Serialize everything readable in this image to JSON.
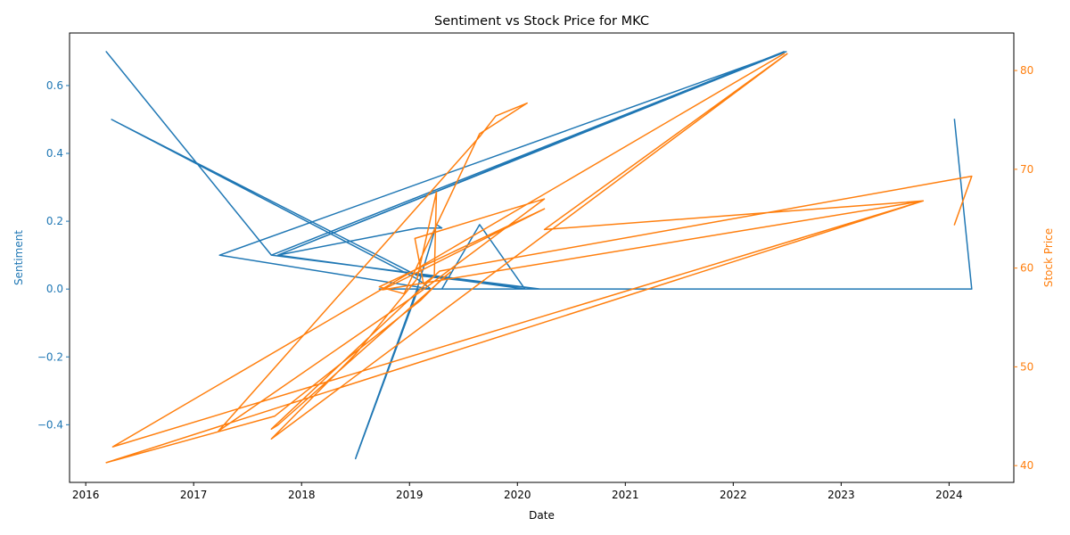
{
  "chart_data": {
    "type": "line",
    "title": "Sentiment vs Stock Price for MKC",
    "xlabel": "Date",
    "ylabel_left": "Sentiment",
    "ylabel_right": "Stock Price",
    "xlim": [
      2015.85,
      2024.6
    ],
    "ylim_left": [
      -0.57,
      0.755
    ],
    "ylim_right": [
      38.3,
      83.8
    ],
    "x_ticks": [
      2016,
      2017,
      2018,
      2019,
      2020,
      2021,
      2022,
      2023,
      2024
    ],
    "x_tick_labels": [
      "2016",
      "2017",
      "2018",
      "2019",
      "2020",
      "2021",
      "2022",
      "2023",
      "2024"
    ],
    "y_left_ticks": [
      -0.4,
      -0.2,
      0.0,
      0.2,
      0.4,
      0.6
    ],
    "y_left_tick_labels": [
      "−0.4",
      "−0.2",
      "0.0",
      "0.2",
      "0.4",
      "0.6"
    ],
    "y_right_ticks": [
      40,
      50,
      60,
      70,
      80
    ],
    "y_right_tick_labels": [
      "40",
      "50",
      "60",
      "70",
      "80"
    ],
    "grid": false,
    "colors": {
      "sentiment": "#1f77b4",
      "price": "#ff7f0e",
      "axis": "#000000"
    },
    "series": [
      {
        "axis": "left",
        "color": "#1f77b4",
        "points": [
          [
            2024.05,
            0.5
          ],
          [
            2024.21,
            0.0
          ],
          [
            2023.76,
            0.0
          ],
          [
            2020.25,
            0.0
          ],
          [
            2020.07,
            0.0
          ],
          [
            2019.65,
            0.19
          ],
          [
            2019.3,
            0.0
          ],
          [
            2019.08,
            0.0
          ],
          [
            2018.5,
            -0.5
          ],
          [
            2018.51,
            -0.49
          ],
          [
            2019.07,
            0.0
          ],
          [
            2019.25,
            0.19
          ],
          [
            2019.3,
            0.18
          ],
          [
            2019.08,
            0.18
          ],
          [
            2017.78,
            0.1
          ],
          [
            2022.47,
            0.7
          ],
          [
            2017.72,
            0.1
          ],
          [
            2016.19,
            0.7
          ],
          [
            2017.72,
            0.1
          ],
          [
            2020.21,
            0.0
          ],
          [
            2019.07,
            0.04
          ],
          [
            2016.24,
            0.5
          ],
          [
            2019.07,
            0.03
          ],
          [
            2019.2,
            0.0
          ],
          [
            2017.24,
            0.1
          ],
          [
            2022.49,
            0.7
          ],
          [
            2017.78,
            0.1
          ],
          [
            2020.07,
            0.0
          ],
          [
            2018.72,
            0.0
          ],
          [
            2019.3,
            0.0
          ],
          [
            2023.76,
            0.0
          ]
        ]
      },
      {
        "axis": "right",
        "color": "#ff7f0e",
        "points": [
          [
            2024.05,
            64.4
          ],
          [
            2024.21,
            69.3
          ],
          [
            2019.28,
            59.7
          ],
          [
            2017.72,
            43.7
          ],
          [
            2017.78,
            44.1
          ],
          [
            2019.38,
            59.6
          ],
          [
            2019.3,
            58.9
          ],
          [
            2019.1,
            56.7
          ],
          [
            2017.75,
            45.0
          ],
          [
            2016.19,
            40.3
          ],
          [
            2023.76,
            66.8
          ],
          [
            2020.25,
            63.9
          ],
          [
            2022.5,
            81.7
          ],
          [
            2017.72,
            42.7
          ],
          [
            2018.5,
            51.3
          ],
          [
            2019.07,
            58.9
          ],
          [
            2019.25,
            67.7
          ],
          [
            2019.23,
            59.2
          ],
          [
            2019.13,
            58.4
          ],
          [
            2019.05,
            63.0
          ],
          [
            2020.25,
            67.0
          ],
          [
            2019.1,
            57.6
          ],
          [
            2017.23,
            43.5
          ],
          [
            2019.65,
            73.3
          ],
          [
            2019.8,
            75.4
          ],
          [
            2020.09,
            76.7
          ],
          [
            2019.65,
            73.6
          ],
          [
            2018.95,
            57.4
          ],
          [
            2018.72,
            58.1
          ],
          [
            2020.25,
            66.0
          ],
          [
            2018.75,
            57.8
          ],
          [
            2023.76,
            66.8
          ],
          [
            2016.25,
            41.9
          ],
          [
            2022.47,
            81.7
          ]
        ]
      }
    ]
  }
}
